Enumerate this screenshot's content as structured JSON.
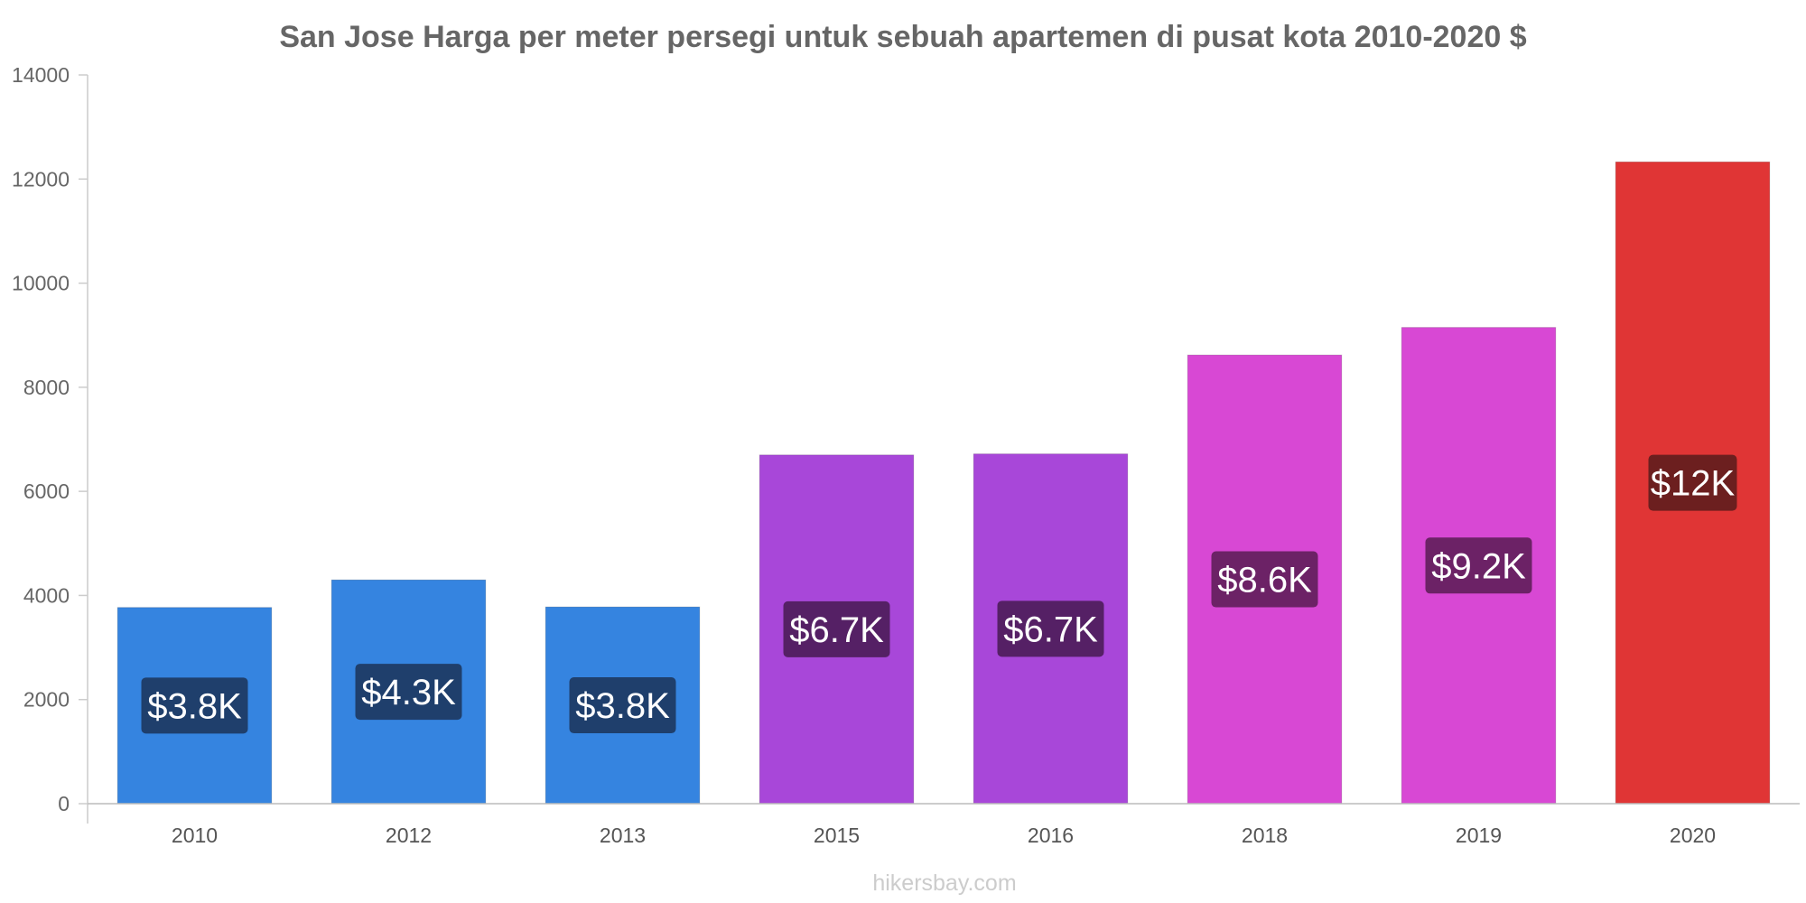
{
  "chart_data": {
    "type": "bar",
    "title": "San Jose Harga per meter persegi untuk sebuah apartemen di pusat kota 2010-2020 $",
    "xlabel": "",
    "ylabel": "",
    "categories": [
      "2010",
      "2012",
      "2013",
      "2015",
      "2016",
      "2018",
      "2019",
      "2020"
    ],
    "values": [
      3770,
      4300,
      3780,
      6700,
      6720,
      8620,
      9150,
      12330
    ],
    "value_labels": [
      "$3.8K",
      "$4.3K",
      "$3.8K",
      "$6.7K",
      "$6.7K",
      "$8.6K",
      "$9.2K",
      "$12K"
    ],
    "bar_colors": [
      "#3584e0",
      "#3584e0",
      "#3584e0",
      "#a847d9",
      "#a847d9",
      "#d848d4",
      "#d848d4",
      "#e03535"
    ],
    "label_bg_colors": [
      "#1f3f6c",
      "#1f3f6c",
      "#1f3f6c",
      "#552065",
      "#552065",
      "#6c2266",
      "#6c2266",
      "#6c1f1f"
    ],
    "ylim": [
      0,
      14000
    ],
    "yticks": [
      "0",
      "2000",
      "4000",
      "6000",
      "8000",
      "10000",
      "12000",
      "14000"
    ],
    "grid": false,
    "legend": "none"
  },
  "source": "hikersbay.com"
}
